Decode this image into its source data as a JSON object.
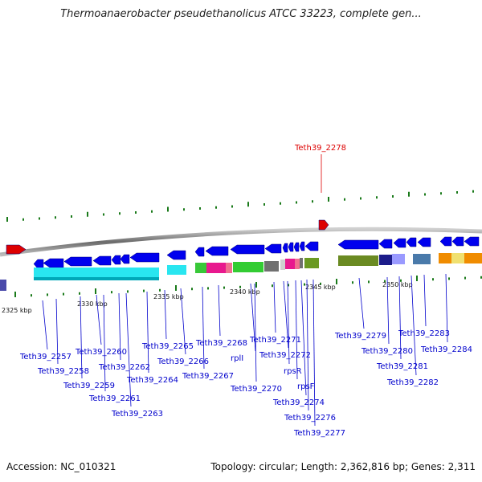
{
  "title": "Thermoanaerobacter pseudethanolicus ATCC 33223, complete gen...",
  "footer": {
    "accession": "Accession: NC_010321",
    "summary": "Topology: circular; Length: 2,362,816 bp; Genes: 2,311"
  },
  "scale_ticks": [
    "2325 kbp",
    "2330 kbp",
    "2335 kbp",
    "2340 kbp",
    "2345 kbp",
    "2350 kbp"
  ],
  "highlighted_gene": "Teth39_2278",
  "gene_labels": [
    "Teth39_2257",
    "Teth39_2258",
    "Teth39_2259",
    "Teth39_2260",
    "Teth39_2261",
    "Teth39_2262",
    "Teth39_2263",
    "Teth39_2264",
    "Teth39_2265",
    "Teth39_2266",
    "Teth39_2267",
    "Teth39_2268",
    "rplI",
    "Teth39_2270",
    "Teth39_2271",
    "Teth39_2272",
    "rpsR",
    "rpsF",
    "Teth39_2274",
    "Teth39_2276",
    "Teth39_2277",
    "Teth39_2279",
    "Teth39_2280",
    "Teth39_2281",
    "Teth39_2282",
    "Teth39_2283",
    "Teth39_2284"
  ],
  "colors": {
    "gene_label": "#0000cc",
    "highlight": "#dd0000",
    "forward_gene": "#0000ee",
    "backbone": "#777777",
    "gc_tick": "#1a7a1a"
  }
}
